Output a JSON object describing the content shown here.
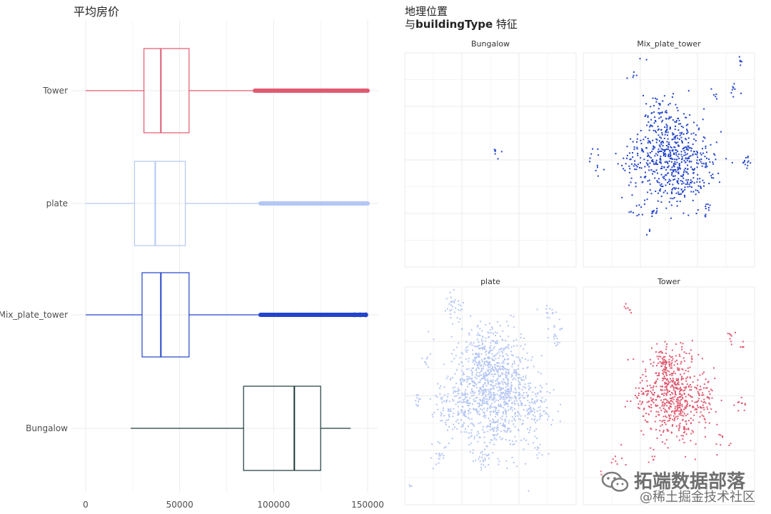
{
  "chart_data": [
    {
      "type": "boxplot",
      "title": "平均房价",
      "orientation": "horizontal",
      "xlim": [
        0,
        150000
      ],
      "x_ticks": [
        "0",
        "50000",
        "100000",
        "150000"
      ],
      "categories": [
        "Tower",
        "plate",
        "Mix_plate_tower",
        "Bungalow"
      ],
      "boxes": [
        {
          "category": "Tower",
          "color": "#e05a70",
          "whisker_low": 0,
          "q1": 31000,
          "median": 40000,
          "q3": 55000,
          "whisker_high": 90000,
          "outliers_from": 90000,
          "outliers_to": 150000
        },
        {
          "category": "plate",
          "color": "#b4c6f4",
          "whisker_low": 0,
          "q1": 26000,
          "median": 37000,
          "q3": 53000,
          "whisker_high": 93000,
          "outliers_from": 93000,
          "outliers_to": 150000
        },
        {
          "category": "Mix_plate_tower",
          "color": "#2244cc",
          "whisker_low": 0,
          "q1": 30000,
          "median": 40000,
          "q3": 55000,
          "whisker_high": 93000,
          "outliers_from": 93000,
          "outliers_to": 149000
        },
        {
          "category": "Bungalow",
          "color": "#1c3a3a",
          "whisker_low": 24000,
          "q1": 84000,
          "median": 111000,
          "q3": 125000,
          "whisker_high": 141000
        }
      ],
      "grid": true
    },
    {
      "type": "scatter",
      "title_line1": "地理位置",
      "title_line2_prefix": "与",
      "title_line2_bold": "buildingType",
      "title_line2_suffix": " 特征",
      "facets": [
        {
          "name": "Bungalow",
          "color": "#2244cc"
        },
        {
          "name": "Mix_plate_tower",
          "color": "#2244cc"
        },
        {
          "name": "plate",
          "color": "#b4c6f4"
        },
        {
          "name": "Tower",
          "color": "#e05a70"
        }
      ],
      "grid": true
    }
  ],
  "watermark": {
    "main": "拓端数据部落",
    "sub": "@稀土掘金技术社区"
  }
}
